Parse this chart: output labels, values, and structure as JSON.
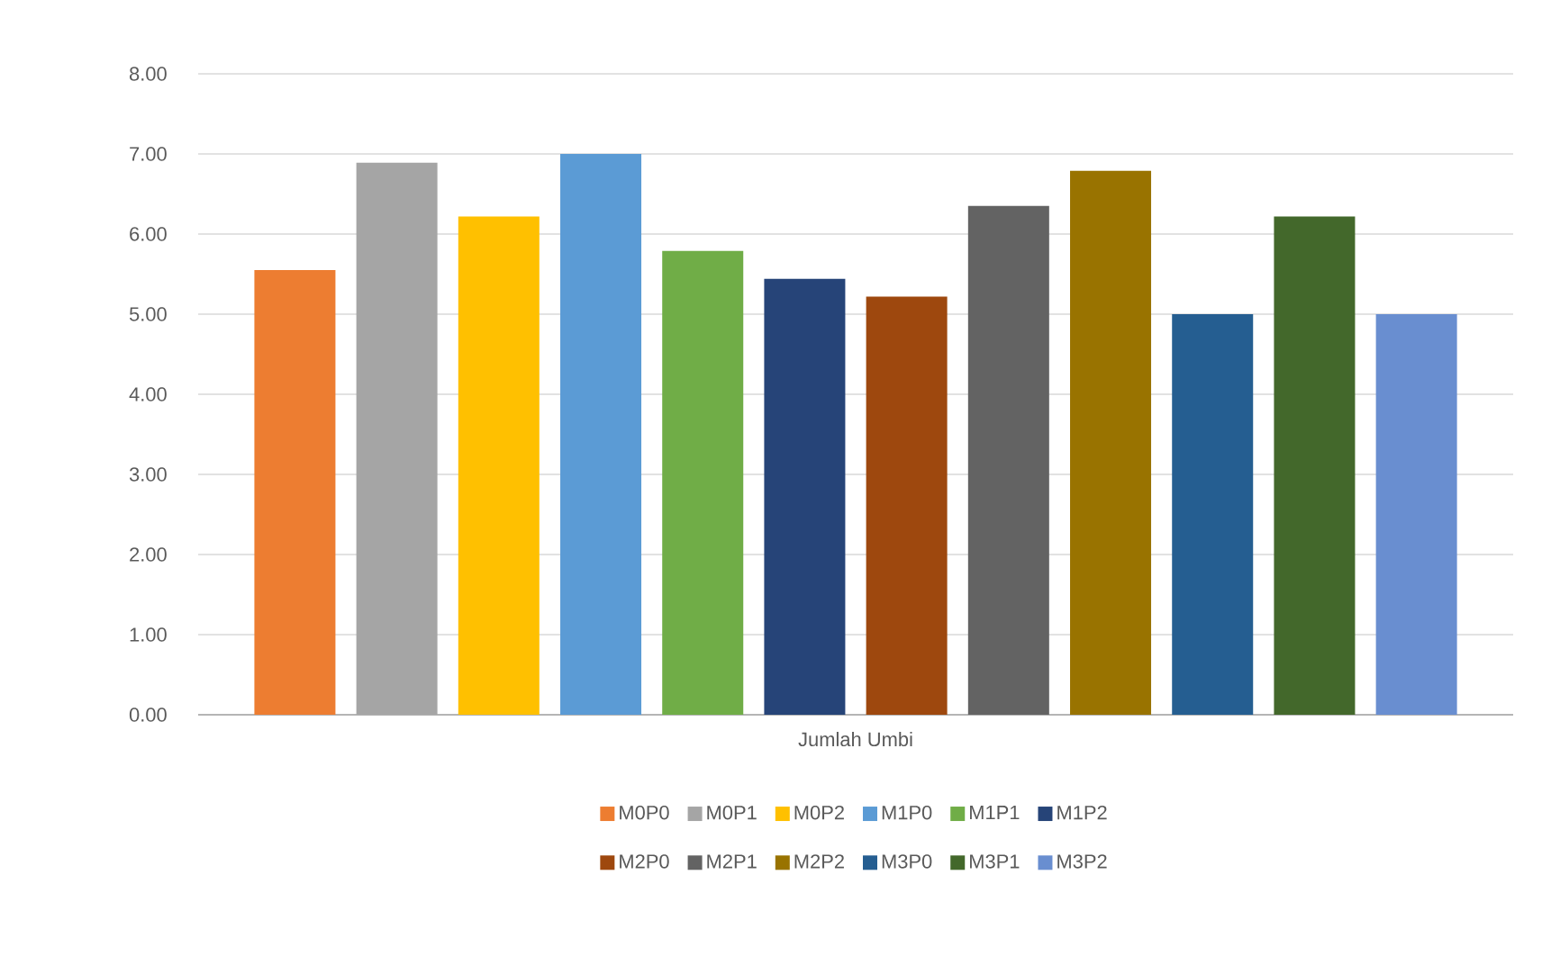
{
  "chart_data": {
    "type": "bar",
    "categories": [
      "Jumlah Umbi"
    ],
    "series": [
      {
        "name": "M0P0",
        "color": "#ed7d31",
        "values": [
          5.55
        ]
      },
      {
        "name": "M0P1",
        "color": "#a5a5a5",
        "values": [
          6.89
        ]
      },
      {
        "name": "M0P2",
        "color": "#ffc000",
        "values": [
          6.22
        ]
      },
      {
        "name": "M1P0",
        "color": "#5b9bd5",
        "values": [
          7.0
        ]
      },
      {
        "name": "M1P1",
        "color": "#70ad47",
        "values": [
          5.79
        ]
      },
      {
        "name": "M1P2",
        "color": "#264478",
        "values": [
          5.44
        ]
      },
      {
        "name": "M2P0",
        "color": "#9e480e",
        "values": [
          5.22
        ]
      },
      {
        "name": "M2P1",
        "color": "#636363",
        "values": [
          6.35
        ]
      },
      {
        "name": "M2P2",
        "color": "#997300",
        "values": [
          6.79
        ]
      },
      {
        "name": "M3P0",
        "color": "#255e91",
        "values": [
          5.0
        ]
      },
      {
        "name": "M3P1",
        "color": "#43682b",
        "values": [
          6.22
        ]
      },
      {
        "name": "M3P2",
        "color": "#698ed0",
        "values": [
          5.0
        ]
      }
    ],
    "ylim": [
      0,
      8
    ],
    "yticks": [
      {
        "value": 0,
        "label": "0.00"
      },
      {
        "value": 1,
        "label": "1.00"
      },
      {
        "value": 2,
        "label": "2.00"
      },
      {
        "value": 3,
        "label": "3.00"
      },
      {
        "value": 4,
        "label": "4.00"
      },
      {
        "value": 5,
        "label": "5.00"
      },
      {
        "value": 6,
        "label": "6.00"
      },
      {
        "value": 7,
        "label": "7.00"
      },
      {
        "value": 8,
        "label": "8.00"
      }
    ],
    "grid": "y",
    "legend": "bottom"
  }
}
